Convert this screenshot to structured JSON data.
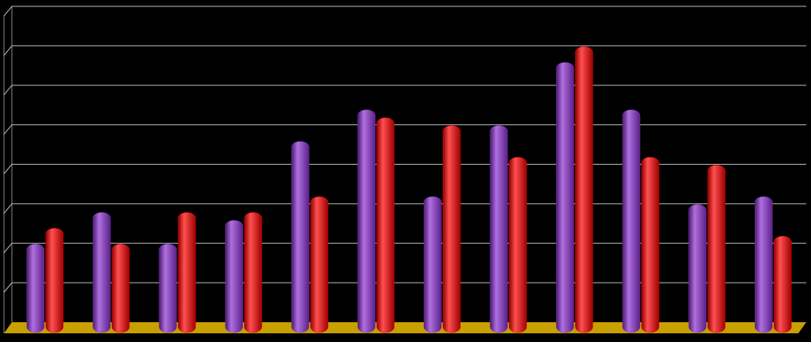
{
  "chart_data": {
    "type": "bar",
    "categories": [
      null,
      null,
      null,
      null,
      null,
      null,
      null,
      null,
      null,
      null,
      null,
      null
    ],
    "series": [
      {
        "color": "#7a35b0",
        "values": [
          2.0,
          2.8,
          2.0,
          2.6,
          4.6,
          5.4,
          3.2,
          5.0,
          6.6,
          5.4,
          3.0,
          3.2
        ]
      },
      {
        "color": "#e00000",
        "values": [
          2.4,
          2.0,
          2.8,
          2.8,
          3.2,
          5.2,
          5.0,
          4.2,
          7.0,
          4.2,
          4.0,
          2.2
        ]
      }
    ],
    "ylim": [
      0,
      8
    ],
    "yticks": [
      1,
      2,
      3,
      4,
      5,
      6,
      7,
      8
    ],
    "grid": true
  }
}
